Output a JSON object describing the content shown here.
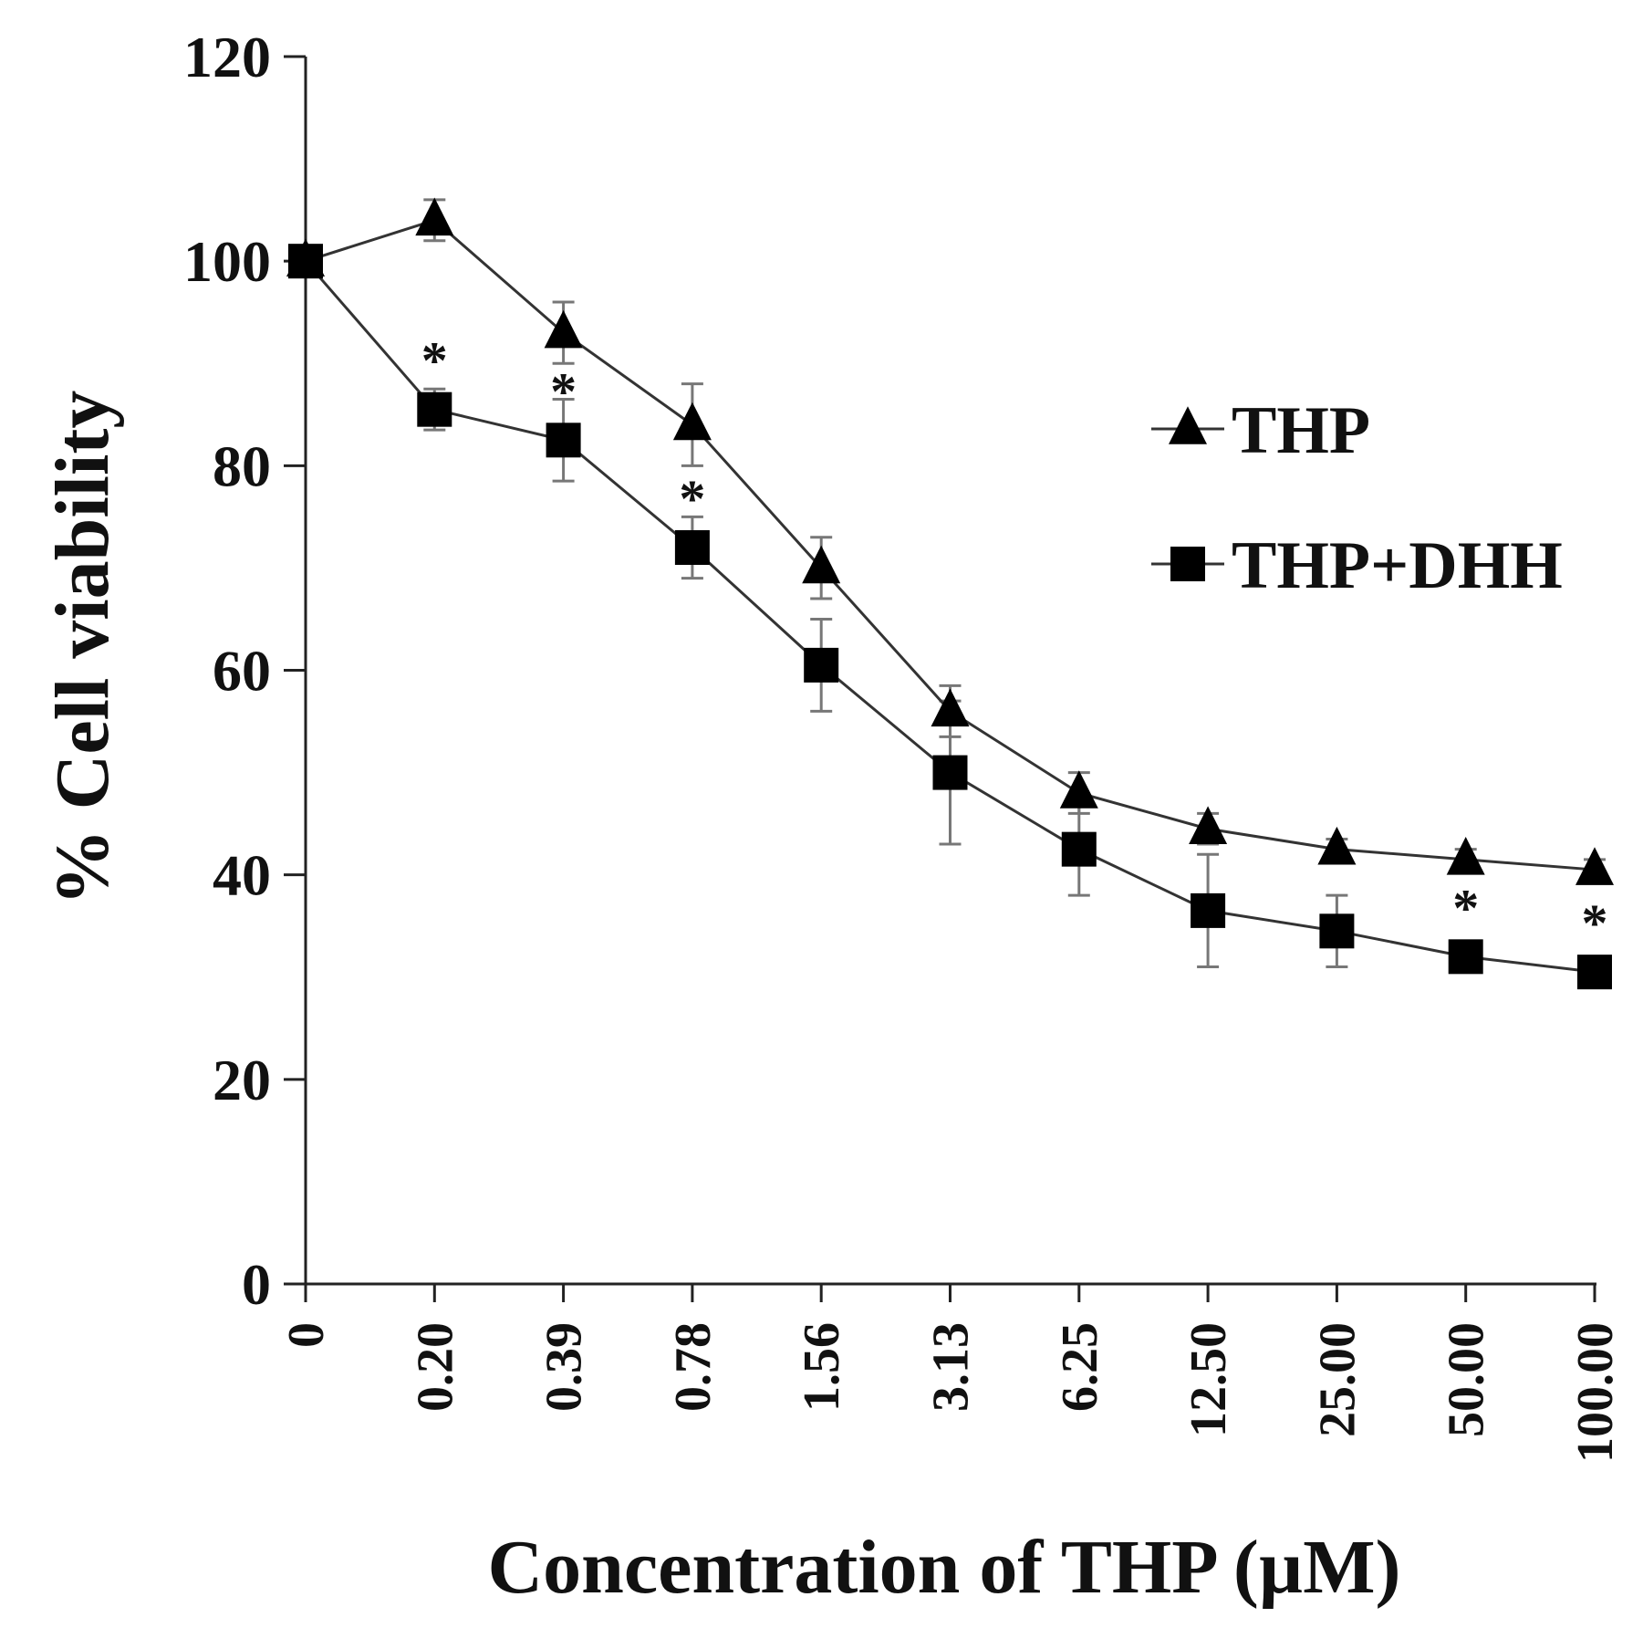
{
  "chart_data": {
    "type": "line",
    "title": "",
    "xlabel": "Concentration of THP (µM)",
    "ylabel": "% Cell viability",
    "ylim": [
      0,
      120
    ],
    "yticks": [
      "0",
      "20",
      "40",
      "60",
      "80",
      "100",
      "120"
    ],
    "categories": [
      "0",
      "0.20",
      "0.39",
      "0.78",
      "1.56",
      "3.13",
      "6.25",
      "12.50",
      "25.00",
      "50.00",
      "100.00"
    ],
    "grid": false,
    "legend_position": "right",
    "series": [
      {
        "name": "THP",
        "marker": "triangle",
        "color": "#000000",
        "values": [
          100,
          104,
          93,
          84,
          70,
          56,
          48,
          44.5,
          42.5,
          41.5,
          40.5
        ],
        "errors": [
          0.5,
          2,
          3,
          4,
          3,
          2.5,
          2,
          1.5,
          1,
          1,
          1
        ],
        "significant": []
      },
      {
        "name": "THP+DHH",
        "marker": "square",
        "color": "#000000",
        "values": [
          100,
          85.5,
          82.5,
          72,
          60.5,
          50,
          42.5,
          36.5,
          34.5,
          32,
          30.5
        ],
        "errors": [
          0.5,
          2,
          4,
          3,
          4.5,
          7,
          4.5,
          5.5,
          3.5,
          1.5,
          1
        ],
        "significant": [
          "0.20",
          "0.39",
          "0.78",
          "50.00",
          "100.00"
        ]
      }
    ],
    "significance_symbol": "*"
  }
}
